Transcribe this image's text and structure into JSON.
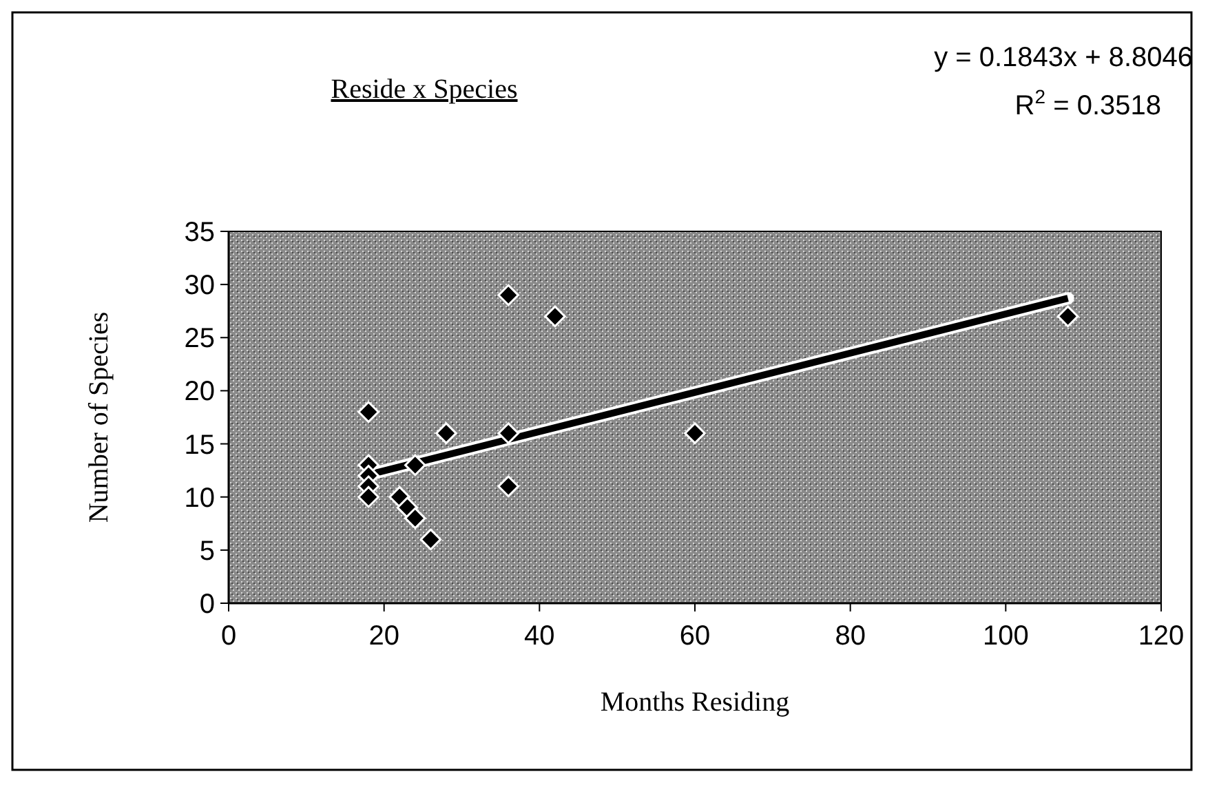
{
  "chart_data": {
    "type": "scatter",
    "title": "Reside x Species",
    "xlabel": "Months Residing",
    "ylabel": "Number of Species",
    "annotations": [
      "y = 0.1843x + 8.8046",
      "R$^{2}$ = 0.3518"
    ],
    "xlim": [
      0,
      120
    ],
    "xticks": [
      0,
      20,
      40,
      60,
      80,
      100,
      120
    ],
    "ylim": [
      0,
      35
    ],
    "yticks": [
      0,
      5,
      10,
      15,
      20,
      25,
      30,
      35
    ],
    "grid": false,
    "marker": "diamond",
    "series": [
      {
        "color": "#000000",
        "x": [
          18,
          18,
          18,
          18,
          18,
          22,
          23,
          24,
          24,
          26,
          28,
          36,
          36,
          36,
          42,
          60,
          108
        ],
        "values": [
          18,
          13,
          12,
          11,
          10,
          10,
          9,
          8,
          13,
          6,
          16,
          16,
          29,
          11,
          27,
          16,
          27
        ]
      },
      {
        "type": "line",
        "color": "#000000",
        "marker": "none",
        "line_style": "solid",
        "x": [
          18,
          108
        ],
        "values": [
          12.1,
          28.7
        ]
      }
    ]
  }
}
